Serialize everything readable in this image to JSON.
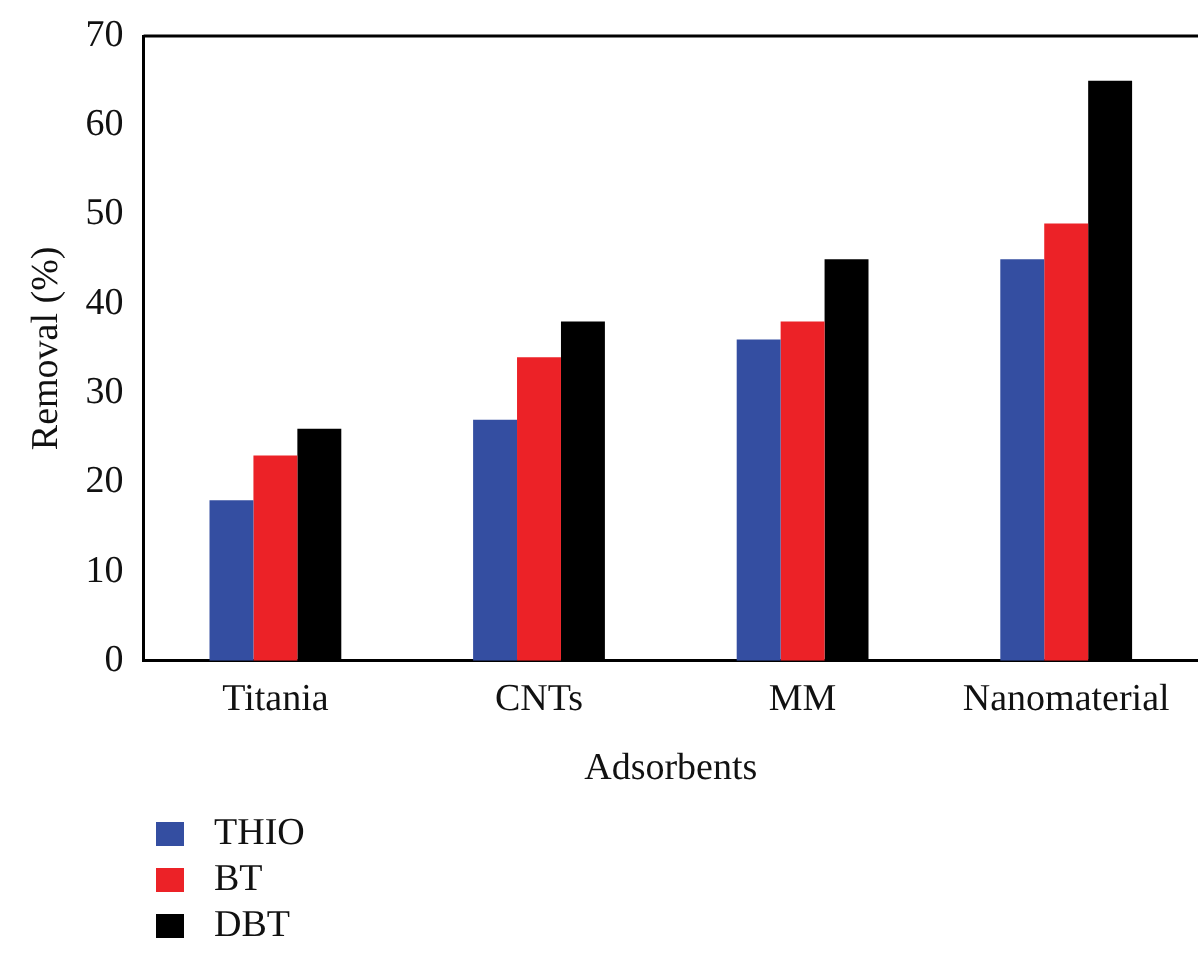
{
  "chart_data": {
    "type": "bar",
    "xlabel": "Adsorbents",
    "ylabel": "Removal (%)",
    "categories": [
      "Titania",
      "CNTs",
      "MM",
      "Nanomaterial"
    ],
    "series": [
      {
        "name": "THIO",
        "color": "#344ea1",
        "values": [
          18,
          27,
          36,
          45
        ]
      },
      {
        "name": "BT",
        "color": "#ec2227",
        "values": [
          23,
          34,
          38,
          49
        ]
      },
      {
        "name": "DBT",
        "color": "#000000",
        "values": [
          26,
          38,
          45,
          65
        ]
      }
    ],
    "ylim": [
      0,
      70
    ],
    "yticks": [
      0,
      10,
      20,
      30,
      40,
      50,
      60,
      70
    ],
    "grid": false,
    "legend": "bottom left"
  }
}
